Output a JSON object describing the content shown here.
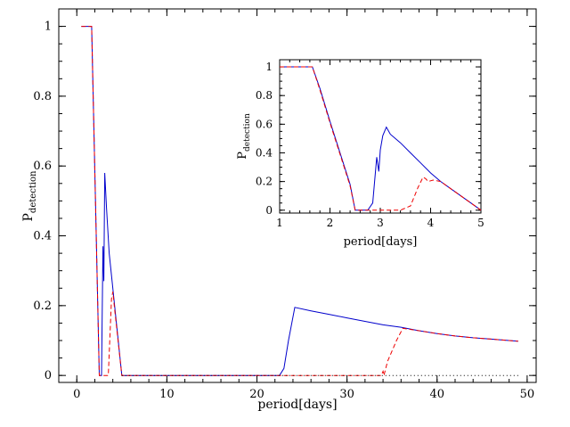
{
  "chart_data": [
    {
      "type": "line",
      "title": "",
      "xlabel": "period[days]",
      "ylabel_main": "P",
      "ylabel_sub": "detection",
      "xlim": [
        -2,
        51
      ],
      "ylim": [
        -0.02,
        1.05
      ],
      "xticks": [
        0,
        10,
        20,
        30,
        40,
        50
      ],
      "yticks": [
        0,
        0.2,
        0.4,
        0.6,
        0.8,
        1
      ],
      "ytick_labels": [
        "0",
        "0.2",
        "0.4",
        "0.6",
        "0.8",
        "1"
      ],
      "grid": false,
      "series": [
        {
          "style": "solid",
          "color": "#0000cc",
          "x": [
            0.5,
            1.65,
            2.5,
            2.75,
            2.9,
            3.0,
            3.1,
            3.3,
            3.6,
            4.2,
            5.0,
            10,
            15,
            20,
            22.5,
            23.0,
            23.5,
            24.2,
            26,
            28,
            30,
            32,
            34,
            36,
            38,
            40,
            42,
            44,
            46,
            48,
            49
          ],
          "y": [
            1,
            1,
            0,
            0,
            0.37,
            0.27,
            0.58,
            0.48,
            0.35,
            0.2,
            0,
            0,
            0,
            0,
            0,
            0.02,
            0.1,
            0.195,
            0.185,
            0.175,
            0.165,
            0.155,
            0.145,
            0.138,
            0.128,
            0.12,
            0.113,
            0.108,
            0.104,
            0.1,
            0.098
          ]
        },
        {
          "style": "dashed",
          "color": "#ee0000",
          "x": [
            0.5,
            1.65,
            2.5,
            3.5,
            3.85,
            4.0,
            4.2,
            5.0,
            10,
            20,
            30,
            33.8,
            34.0,
            34.1,
            34.5,
            35.5,
            36.2,
            38,
            40,
            42,
            44,
            46,
            48,
            49
          ],
          "y": [
            1,
            1,
            0,
            0,
            0.22,
            0.24,
            0.19,
            0,
            0,
            0,
            0,
            0,
            0.012,
            0,
            0.04,
            0.1,
            0.135,
            0.128,
            0.12,
            0.113,
            0.108,
            0.104,
            0.1,
            0.098
          ]
        },
        {
          "style": "dotted",
          "color": "#000000",
          "x": [
            5,
            49
          ],
          "y": [
            0,
            0
          ]
        }
      ]
    },
    {
      "type": "line",
      "title": "",
      "xlabel": "period[days]",
      "ylabel_main": "P",
      "ylabel_sub": "detection",
      "xlim": [
        1,
        5
      ],
      "ylim": [
        -0.02,
        1.05
      ],
      "xticks": [
        1,
        2,
        3,
        4,
        5
      ],
      "yticks": [
        0,
        0.2,
        0.4,
        0.6,
        0.8,
        1
      ],
      "ytick_labels": [
        "0",
        "0.2",
        "0.4",
        "0.6",
        "0.8",
        "1"
      ],
      "grid": false,
      "series": [
        {
          "style": "solid",
          "color": "#0000cc",
          "x": [
            1.0,
            1.65,
            1.8,
            2.0,
            2.2,
            2.4,
            2.5,
            2.6,
            2.75,
            2.85,
            2.93,
            2.97,
            3.0,
            3.05,
            3.12,
            3.2,
            3.4,
            3.6,
            3.8,
            4.0,
            4.2,
            4.4,
            4.6,
            4.8,
            5.0
          ],
          "y": [
            1,
            1,
            0.85,
            0.62,
            0.4,
            0.18,
            0.0,
            0.0,
            0.0,
            0.05,
            0.37,
            0.27,
            0.42,
            0.52,
            0.58,
            0.53,
            0.47,
            0.4,
            0.33,
            0.26,
            0.2,
            0.15,
            0.1,
            0.05,
            0.0
          ]
        },
        {
          "style": "dashed",
          "color": "#ee0000",
          "x": [
            1.0,
            1.65,
            1.8,
            2.0,
            2.2,
            2.4,
            2.5,
            3.4,
            3.6,
            3.75,
            3.85,
            3.9,
            3.95,
            4.05,
            4.2,
            4.4,
            4.6,
            4.8,
            5.0
          ],
          "y": [
            1,
            1,
            0.84,
            0.61,
            0.39,
            0.17,
            0.0,
            0.0,
            0.03,
            0.16,
            0.23,
            0.22,
            0.2,
            0.21,
            0.2,
            0.15,
            0.1,
            0.05,
            0.0
          ]
        }
      ]
    }
  ]
}
